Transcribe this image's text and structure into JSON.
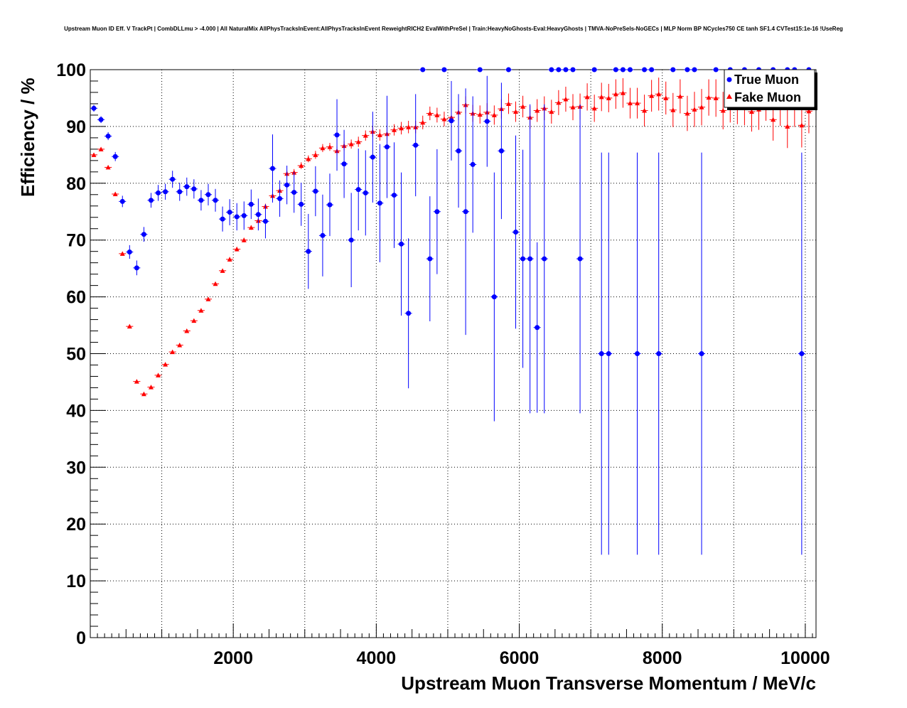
{
  "chart_data": {
    "type": "scatter",
    "title": "Upstream Muon ID Eff. V TrackPt | CombDLLmu > -4.000 | All NaturalMix AllPhysTracksInEvent:AllPhysTracksInEvent ReweightRICH2 EvalWithPreSel | Train:HeavyNoGhosts-Eval:HeavyGhosts | TMVA-NoPreSels-NoGECs | MLP Norm BP NCycles750 CE tanh SF1.4 CVTest15:1e-16 !UseReg",
    "xlabel": "Upstream Muon Transverse Momentum / MeV/c",
    "ylabel": "Efficiency / %",
    "xlim": [
      0,
      10150
    ],
    "ylim": [
      0,
      100
    ],
    "x_ticks": [
      "2000",
      "4000",
      "6000",
      "8000",
      "10000"
    ],
    "y_ticks": [
      "0",
      "10",
      "20",
      "30",
      "40",
      "50",
      "60",
      "70",
      "80",
      "90",
      "100"
    ],
    "grid": true,
    "legend_position": "top-right",
    "series": [
      {
        "name": "True Muon",
        "color": "#0000ff",
        "marker": "circle",
        "points": [
          {
            "x": 50,
            "y": 93.2,
            "err": 0.6
          },
          {
            "x": 150,
            "y": 91.2,
            "err": 0.6
          },
          {
            "x": 250,
            "y": 88.3,
            "err": 0.7
          },
          {
            "x": 350,
            "y": 84.7,
            "err": 0.8
          },
          {
            "x": 450,
            "y": 76.8,
            "err": 1.0
          },
          {
            "x": 550,
            "y": 67.9,
            "err": 1.2
          },
          {
            "x": 650,
            "y": 65.1,
            "err": 1.3
          },
          {
            "x": 750,
            "y": 71.0,
            "err": 1.3
          },
          {
            "x": 850,
            "y": 77.0,
            "err": 1.3
          },
          {
            "x": 950,
            "y": 78.3,
            "err": 1.4
          },
          {
            "x": 1050,
            "y": 78.5,
            "err": 1.4
          },
          {
            "x": 1150,
            "y": 80.7,
            "err": 1.5
          },
          {
            "x": 1250,
            "y": 78.5,
            "err": 1.6
          },
          {
            "x": 1350,
            "y": 79.4,
            "err": 1.6
          },
          {
            "x": 1450,
            "y": 79.0,
            "err": 1.7
          },
          {
            "x": 1550,
            "y": 77.0,
            "err": 1.8
          },
          {
            "x": 1650,
            "y": 78.0,
            "err": 1.9
          },
          {
            "x": 1750,
            "y": 77.0,
            "err": 2.0
          },
          {
            "x": 1850,
            "y": 73.7,
            "err": 2.2
          },
          {
            "x": 1950,
            "y": 74.9,
            "err": 2.3
          },
          {
            "x": 2050,
            "y": 74.1,
            "err": 2.4
          },
          {
            "x": 2150,
            "y": 74.3,
            "err": 2.5
          },
          {
            "x": 2250,
            "y": 76.3,
            "err": 2.6
          },
          {
            "x": 2350,
            "y": 74.5,
            "err": 2.8
          },
          {
            "x": 2450,
            "y": 73.3,
            "err": 3.0
          },
          {
            "x": 2550,
            "y": 82.6,
            "err": 6.0
          },
          {
            "x": 2650,
            "y": 77.3,
            "err": 3.2
          },
          {
            "x": 2750,
            "y": 79.7,
            "err": 3.4
          },
          {
            "x": 2850,
            "y": 78.4,
            "err": 3.6
          },
          {
            "x": 2950,
            "y": 76.3,
            "err": 3.8
          },
          {
            "x": 3050,
            "y": 68.0,
            "err": 6.6
          },
          {
            "x": 3150,
            "y": 78.6,
            "err": 4.4
          },
          {
            "x": 3250,
            "y": 70.8,
            "err": 7.2
          },
          {
            "x": 3350,
            "y": 76.2,
            "err": 5.5
          },
          {
            "x": 3450,
            "y": 88.5,
            "err": 6.3
          },
          {
            "x": 3550,
            "y": 83.4,
            "err": 6.0
          },
          {
            "x": 3650,
            "y": 70.0,
            "err": 8.3
          },
          {
            "x": 3750,
            "y": 78.9,
            "err": 7.2
          },
          {
            "x": 3850,
            "y": 78.3,
            "err": 7.5
          },
          {
            "x": 3950,
            "y": 84.6,
            "err": 8.0
          },
          {
            "x": 4050,
            "y": 76.5,
            "err": 10.4
          },
          {
            "x": 4150,
            "y": 86.4,
            "err": 9.0
          },
          {
            "x": 4250,
            "y": 77.9,
            "err": 9.3
          },
          {
            "x": 4350,
            "y": 69.3,
            "err": 12.6
          },
          {
            "x": 4450,
            "y": 57.1,
            "err": 13.2
          },
          {
            "x": 4550,
            "y": 86.7,
            "err": 9.0
          },
          {
            "x": 4650,
            "y": 100.0,
            "err": 0
          },
          {
            "x": 4750,
            "y": 66.7,
            "err": 11.0
          },
          {
            "x": 4850,
            "y": 75.0,
            "err": 11.0
          },
          {
            "x": 4950,
            "y": 100.0,
            "err": 0
          },
          {
            "x": 5050,
            "y": 91.0,
            "err": 7.0
          },
          {
            "x": 5150,
            "y": 85.7,
            "err": 10.0
          },
          {
            "x": 5250,
            "y": 75.0,
            "err": 21.7
          },
          {
            "x": 5350,
            "y": 83.3,
            "err": 12.0
          },
          {
            "x": 5450,
            "y": 100.0,
            "err": 0
          },
          {
            "x": 5550,
            "y": 90.9,
            "err": 8.0
          },
          {
            "x": 5650,
            "y": 60.0,
            "err": 21.9
          },
          {
            "x": 5750,
            "y": 85.7,
            "err": 12.0
          },
          {
            "x": 5850,
            "y": 100.0,
            "err": 0
          },
          {
            "x": 5950,
            "y": 71.4,
            "err": 17.0
          },
          {
            "x": 6050,
            "y": 66.7,
            "err": 19.2
          },
          {
            "x": 6150,
            "y": 66.7,
            "err": 27.2
          },
          {
            "x": 6250,
            "y": 54.6,
            "err": 15.0
          },
          {
            "x": 6350,
            "y": 66.7,
            "err": 27.2
          },
          {
            "x": 6450,
            "y": 100.0,
            "err": 0
          },
          {
            "x": 6550,
            "y": 100.0,
            "err": 0
          },
          {
            "x": 6650,
            "y": 100.0,
            "err": 0
          },
          {
            "x": 6750,
            "y": 100.0,
            "err": 0
          },
          {
            "x": 6850,
            "y": 66.7,
            "err": 27.2
          },
          {
            "x": 7050,
            "y": 100.0,
            "err": 0
          },
          {
            "x": 7150,
            "y": 50.0,
            "err": 35.4
          },
          {
            "x": 7250,
            "y": 50.0,
            "err": 35.4
          },
          {
            "x": 7350,
            "y": 100.0,
            "err": 0
          },
          {
            "x": 7450,
            "y": 100.0,
            "err": 0
          },
          {
            "x": 7550,
            "y": 100.0,
            "err": 0
          },
          {
            "x": 7650,
            "y": 50.0,
            "err": 35.4
          },
          {
            "x": 7750,
            "y": 100.0,
            "err": 0
          },
          {
            "x": 7850,
            "y": 100.0,
            "err": 0
          },
          {
            "x": 7950,
            "y": 50.0,
            "err": 35.4
          },
          {
            "x": 8150,
            "y": 100.0,
            "err": 0
          },
          {
            "x": 8350,
            "y": 100.0,
            "err": 0
          },
          {
            "x": 8450,
            "y": 100.0,
            "err": 0
          },
          {
            "x": 8550,
            "y": 50.0,
            "err": 35.4
          },
          {
            "x": 8750,
            "y": 100.0,
            "err": 0
          },
          {
            "x": 8950,
            "y": 100.0,
            "err": 0
          },
          {
            "x": 9150,
            "y": 100.0,
            "err": 0
          },
          {
            "x": 9350,
            "y": 100.0,
            "err": 0
          },
          {
            "x": 9550,
            "y": 100.0,
            "err": 0
          },
          {
            "x": 9750,
            "y": 100.0,
            "err": 0
          },
          {
            "x": 9850,
            "y": 100.0,
            "err": 0
          },
          {
            "x": 9950,
            "y": 50.0,
            "err": 35.4
          },
          {
            "x": 10050,
            "y": 100.0,
            "err": 0
          }
        ]
      },
      {
        "name": "Fake Muon",
        "color": "#ff0000",
        "marker": "triangle",
        "points": [
          {
            "x": 50,
            "y": 85.0,
            "err": 0.3
          },
          {
            "x": 150,
            "y": 86.0,
            "err": 0.3
          },
          {
            "x": 250,
            "y": 82.8,
            "err": 0.3
          },
          {
            "x": 350,
            "y": 78.1,
            "err": 0.3
          },
          {
            "x": 450,
            "y": 67.6,
            "err": 0.3
          },
          {
            "x": 550,
            "y": 54.8,
            "err": 0.3
          },
          {
            "x": 650,
            "y": 45.1,
            "err": 0.3
          },
          {
            "x": 750,
            "y": 42.9,
            "err": 0.3
          },
          {
            "x": 850,
            "y": 44.1,
            "err": 0.3
          },
          {
            "x": 950,
            "y": 46.2,
            "err": 0.3
          },
          {
            "x": 1050,
            "y": 48.1,
            "err": 0.3
          },
          {
            "x": 1150,
            "y": 50.3,
            "err": 0.3
          },
          {
            "x": 1250,
            "y": 51.5,
            "err": 0.3
          },
          {
            "x": 1350,
            "y": 54.0,
            "err": 0.3
          },
          {
            "x": 1450,
            "y": 55.8,
            "err": 0.3
          },
          {
            "x": 1550,
            "y": 57.6,
            "err": 0.3
          },
          {
            "x": 1650,
            "y": 59.6,
            "err": 0.3
          },
          {
            "x": 1750,
            "y": 62.3,
            "err": 0.3
          },
          {
            "x": 1850,
            "y": 64.6,
            "err": 0.3
          },
          {
            "x": 1950,
            "y": 66.6,
            "err": 0.4
          },
          {
            "x": 2050,
            "y": 68.4,
            "err": 0.4
          },
          {
            "x": 2150,
            "y": 70.0,
            "err": 0.4
          },
          {
            "x": 2250,
            "y": 72.2,
            "err": 0.4
          },
          {
            "x": 2350,
            "y": 73.4,
            "err": 0.4
          },
          {
            "x": 2450,
            "y": 75.9,
            "err": 0.5
          },
          {
            "x": 2550,
            "y": 77.8,
            "err": 0.5
          },
          {
            "x": 2650,
            "y": 78.7,
            "err": 0.5
          },
          {
            "x": 2750,
            "y": 81.7,
            "err": 0.5
          },
          {
            "x": 2850,
            "y": 81.9,
            "err": 0.6
          },
          {
            "x": 2950,
            "y": 83.1,
            "err": 0.6
          },
          {
            "x": 3050,
            "y": 84.3,
            "err": 0.6
          },
          {
            "x": 3150,
            "y": 85.0,
            "err": 0.7
          },
          {
            "x": 3250,
            "y": 86.2,
            "err": 0.7
          },
          {
            "x": 3350,
            "y": 86.4,
            "err": 0.7
          },
          {
            "x": 3450,
            "y": 85.7,
            "err": 0.8
          },
          {
            "x": 3550,
            "y": 86.6,
            "err": 0.8
          },
          {
            "x": 3650,
            "y": 86.9,
            "err": 0.8
          },
          {
            "x": 3750,
            "y": 87.3,
            "err": 0.9
          },
          {
            "x": 3850,
            "y": 88.4,
            "err": 0.9
          },
          {
            "x": 3950,
            "y": 89.1,
            "err": 0.9
          },
          {
            "x": 4050,
            "y": 88.5,
            "err": 1.0
          },
          {
            "x": 4150,
            "y": 88.7,
            "err": 1.0
          },
          {
            "x": 4250,
            "y": 89.4,
            "err": 1.0
          },
          {
            "x": 4350,
            "y": 89.7,
            "err": 1.1
          },
          {
            "x": 4450,
            "y": 89.9,
            "err": 1.1
          },
          {
            "x": 4550,
            "y": 89.9,
            "err": 1.1
          },
          {
            "x": 4650,
            "y": 90.7,
            "err": 1.2
          },
          {
            "x": 4750,
            "y": 92.3,
            "err": 1.2
          },
          {
            "x": 4850,
            "y": 92.0,
            "err": 1.3
          },
          {
            "x": 4950,
            "y": 91.3,
            "err": 1.3
          },
          {
            "x": 5050,
            "y": 91.6,
            "err": 1.4
          },
          {
            "x": 5150,
            "y": 92.5,
            "err": 1.4
          },
          {
            "x": 5250,
            "y": 93.8,
            "err": 1.5
          },
          {
            "x": 5350,
            "y": 92.3,
            "err": 1.5
          },
          {
            "x": 5450,
            "y": 92.1,
            "err": 1.6
          },
          {
            "x": 5550,
            "y": 92.5,
            "err": 1.6
          },
          {
            "x": 5650,
            "y": 92.0,
            "err": 1.7
          },
          {
            "x": 5750,
            "y": 93.1,
            "err": 1.7
          },
          {
            "x": 5850,
            "y": 94.0,
            "err": 1.8
          },
          {
            "x": 5950,
            "y": 92.6,
            "err": 1.8
          },
          {
            "x": 6050,
            "y": 93.5,
            "err": 1.9
          },
          {
            "x": 6150,
            "y": 91.6,
            "err": 2.0
          },
          {
            "x": 6250,
            "y": 92.8,
            "err": 2.0
          },
          {
            "x": 6350,
            "y": 93.2,
            "err": 2.1
          },
          {
            "x": 6450,
            "y": 92.6,
            "err": 2.1
          },
          {
            "x": 6550,
            "y": 94.2,
            "err": 2.2
          },
          {
            "x": 6650,
            "y": 94.8,
            "err": 2.2
          },
          {
            "x": 6750,
            "y": 93.4,
            "err": 2.3
          },
          {
            "x": 6850,
            "y": 93.5,
            "err": 2.3
          },
          {
            "x": 6950,
            "y": 95.2,
            "err": 2.4
          },
          {
            "x": 7050,
            "y": 93.2,
            "err": 2.4
          },
          {
            "x": 7150,
            "y": 95.2,
            "err": 2.5
          },
          {
            "x": 7250,
            "y": 95.0,
            "err": 2.5
          },
          {
            "x": 7350,
            "y": 95.7,
            "err": 2.6
          },
          {
            "x": 7450,
            "y": 95.9,
            "err": 2.6
          },
          {
            "x": 7550,
            "y": 94.1,
            "err": 2.7
          },
          {
            "x": 7650,
            "y": 94.1,
            "err": 2.7
          },
          {
            "x": 7750,
            "y": 92.8,
            "err": 2.8
          },
          {
            "x": 7850,
            "y": 95.4,
            "err": 2.8
          },
          {
            "x": 7950,
            "y": 95.7,
            "err": 2.9
          },
          {
            "x": 8050,
            "y": 95.0,
            "err": 2.9
          },
          {
            "x": 8150,
            "y": 92.9,
            "err": 3.0
          },
          {
            "x": 8250,
            "y": 95.3,
            "err": 3.0
          },
          {
            "x": 8350,
            "y": 92.3,
            "err": 3.1
          },
          {
            "x": 8450,
            "y": 93.0,
            "err": 3.1
          },
          {
            "x": 8550,
            "y": 93.4,
            "err": 3.2
          },
          {
            "x": 8650,
            "y": 95.1,
            "err": 3.2
          },
          {
            "x": 8750,
            "y": 95.0,
            "err": 3.3
          },
          {
            "x": 8850,
            "y": 92.8,
            "err": 3.3
          },
          {
            "x": 8950,
            "y": 94.1,
            "err": 3.4
          },
          {
            "x": 9050,
            "y": 93.8,
            "err": 3.4
          },
          {
            "x": 9150,
            "y": 93.7,
            "err": 3.5
          },
          {
            "x": 9250,
            "y": 92.6,
            "err": 3.5
          },
          {
            "x": 9350,
            "y": 93.0,
            "err": 3.6
          },
          {
            "x": 9450,
            "y": 94.6,
            "err": 3.6
          },
          {
            "x": 9550,
            "y": 91.2,
            "err": 3.7
          },
          {
            "x": 9650,
            "y": 93.8,
            "err": 3.7
          },
          {
            "x": 9750,
            "y": 90.0,
            "err": 3.8
          },
          {
            "x": 9850,
            "y": 93.7,
            "err": 3.8
          },
          {
            "x": 9950,
            "y": 90.2,
            "err": 3.9
          },
          {
            "x": 10050,
            "y": 92.7,
            "err": 3.9
          }
        ]
      }
    ]
  }
}
